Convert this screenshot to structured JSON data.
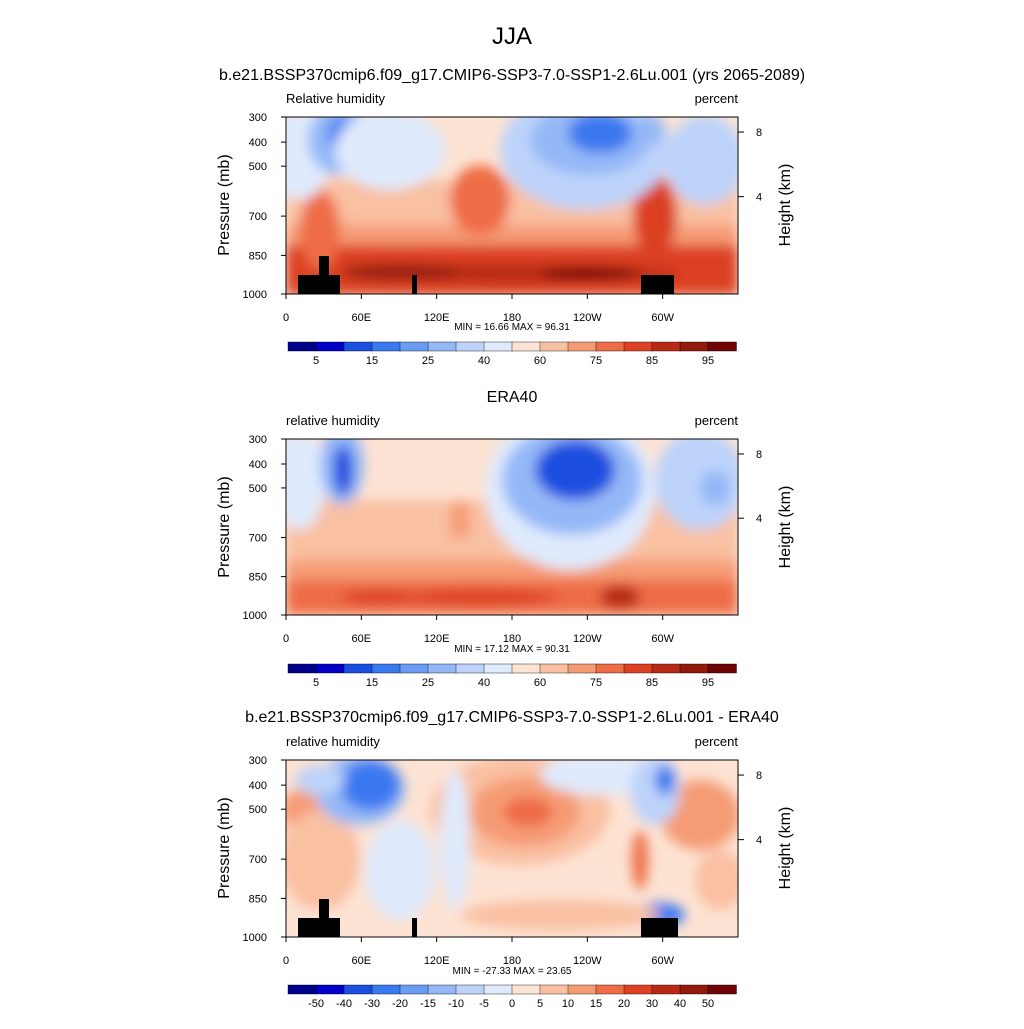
{
  "page": {
    "season": "JJA"
  },
  "chart_data": [
    {
      "type": "heatmap",
      "title": "b.e21.BSSP370cmip6.f09_g17.CMIP6-SSP3-7.0-SSP1-2.6Lu.001 (yrs 2065-2089)",
      "left_label": "Relative humidity",
      "right_label": "percent",
      "ylabel": "Pressure (mb)",
      "ylabel_right": "Height (km)",
      "xticks": [
        "0",
        "60E",
        "120E",
        "180",
        "120W",
        "60W"
      ],
      "yticks": [
        "300",
        "400",
        "500",
        "700",
        "850",
        "1000"
      ],
      "yticks_right": [
        "8",
        "4"
      ],
      "stats": "MIN =  16.66  MAX =  96.31",
      "min": 16.66,
      "max": 96.31,
      "colorbar_labels": [
        "5",
        "15",
        "25",
        "40",
        "60",
        "75",
        "85",
        "95"
      ],
      "colorbar_colors": [
        "#00008b",
        "#0000c8",
        "#1a4fe0",
        "#3a78f0",
        "#6a9cf4",
        "#94b8f7",
        "#bdd3fa",
        "#dfeafd",
        "#fde3d3",
        "#f9c0a2",
        "#f59b74",
        "#ee6d46",
        "#dc4123",
        "#b82a14",
        "#921a0a",
        "#6e0404"
      ],
      "terrain": true,
      "xlim": [
        0,
        360
      ],
      "ylim": [
        1000,
        300
      ]
    },
    {
      "type": "heatmap",
      "title": "ERA40",
      "left_label": "relative humidity",
      "right_label": "percent",
      "ylabel": "Pressure (mb)",
      "ylabel_right": "Height (km)",
      "xticks": [
        "0",
        "60E",
        "120E",
        "180",
        "120W",
        "60W"
      ],
      "yticks": [
        "300",
        "400",
        "500",
        "700",
        "850",
        "1000"
      ],
      "yticks_right": [
        "8",
        "4"
      ],
      "stats": "MIN =  17.12  MAX =  90.31",
      "min": 17.12,
      "max": 90.31,
      "colorbar_labels": [
        "5",
        "15",
        "25",
        "40",
        "60",
        "75",
        "85",
        "95"
      ],
      "colorbar_colors": [
        "#00008b",
        "#0000c8",
        "#1a4fe0",
        "#3a78f0",
        "#6a9cf4",
        "#94b8f7",
        "#bdd3fa",
        "#dfeafd",
        "#fde3d3",
        "#f9c0a2",
        "#f59b74",
        "#ee6d46",
        "#dc4123",
        "#b82a14",
        "#921a0a",
        "#6e0404"
      ],
      "terrain": false,
      "xlim": [
        0,
        360
      ],
      "ylim": [
        1000,
        300
      ]
    },
    {
      "type": "heatmap",
      "title": "b.e21.BSSP370cmip6.f09_g17.CMIP6-SSP3-7.0-SSP1-2.6Lu.001 - ERA40",
      "left_label": "relative humidity",
      "right_label": "percent",
      "ylabel": "Pressure (mb)",
      "ylabel_right": "Height (km)",
      "xticks": [
        "0",
        "60E",
        "120E",
        "180",
        "120W",
        "60W"
      ],
      "yticks": [
        "300",
        "400",
        "500",
        "700",
        "850",
        "1000"
      ],
      "yticks_right": [
        "8",
        "4"
      ],
      "stats": "MIN = -27.33  MAX =  23.65",
      "min": -27.33,
      "max": 23.65,
      "colorbar_labels": [
        "-50",
        "-40",
        "-30",
        "-20",
        "-15",
        "-10",
        "-5",
        "0",
        "5",
        "10",
        "15",
        "20",
        "30",
        "40",
        "50"
      ],
      "colorbar_colors": [
        "#00008b",
        "#0000c8",
        "#1a4fe0",
        "#3a78f0",
        "#6a9cf4",
        "#94b8f7",
        "#bdd3fa",
        "#dfeafd",
        "#fde3d3",
        "#f9c0a2",
        "#f59b74",
        "#ee6d46",
        "#dc4123",
        "#b82a14",
        "#921a0a",
        "#6e0404"
      ],
      "terrain": true,
      "xlim": [
        0,
        360
      ],
      "ylim": [
        1000,
        300
      ]
    }
  ]
}
